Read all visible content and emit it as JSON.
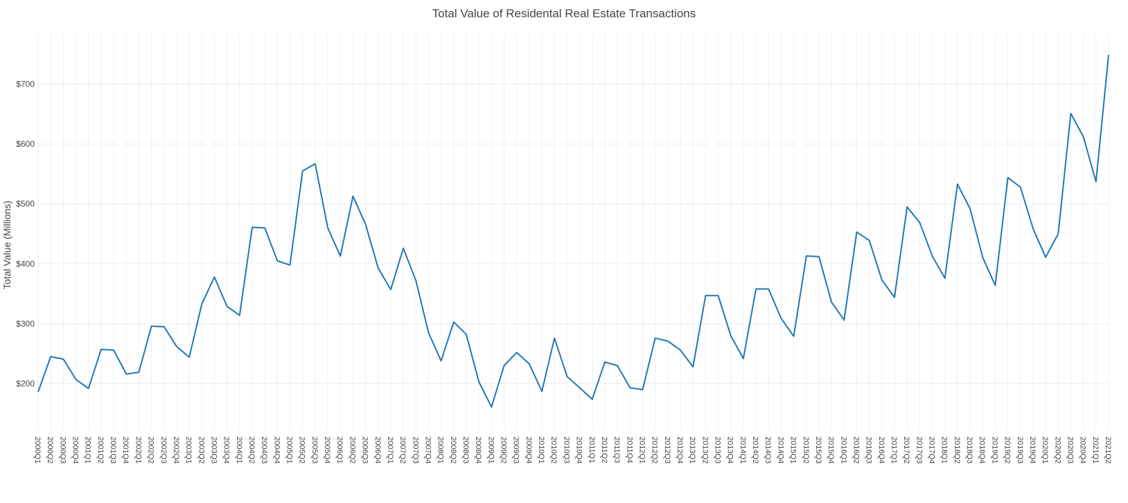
{
  "chart_data": {
    "type": "line",
    "title": "Total Value of Residental Real Estate Transactions",
    "xlabel": "",
    "ylabel": "Total Value (Millions)",
    "ylim": [
      122,
      785
    ],
    "yticks": [
      200,
      300,
      400,
      500,
      600,
      700
    ],
    "ytick_labels": [
      "$200",
      "$300",
      "$400",
      "$500",
      "$600",
      "$700"
    ],
    "grid": true,
    "line_color": "#1f77b4",
    "categories": [
      "2000Q1",
      "2000Q2",
      "2000Q3",
      "2000Q4",
      "2001Q1",
      "2001Q2",
      "2001Q3",
      "2001Q4",
      "2002Q1",
      "2002Q2",
      "2002Q3",
      "2002Q4",
      "2003Q1",
      "2003Q2",
      "2003Q3",
      "2003Q4",
      "2004Q1",
      "2004Q2",
      "2004Q3",
      "2004Q4",
      "2005Q1",
      "2005Q2",
      "2005Q3",
      "2005Q4",
      "2006Q1",
      "2006Q2",
      "2006Q3",
      "2006Q4",
      "2007Q1",
      "2007Q2",
      "2007Q3",
      "2007Q4",
      "2008Q1",
      "2008Q2",
      "2008Q3",
      "2008Q4",
      "2009Q1",
      "2009Q2",
      "2009Q3",
      "2009Q4",
      "2010Q1",
      "2010Q2",
      "2010Q3",
      "2010Q4",
      "2011Q1",
      "2011Q2",
      "2011Q3",
      "2011Q4",
      "2012Q1",
      "2012Q2",
      "2012Q3",
      "2012Q4",
      "2013Q1",
      "2013Q2",
      "2013Q3",
      "2013Q4",
      "2014Q1",
      "2014Q2",
      "2014Q3",
      "2014Q4",
      "2015Q1",
      "2015Q2",
      "2015Q3",
      "2015Q4",
      "2016Q1",
      "2016Q2",
      "2016Q3",
      "2016Q4",
      "2017Q1",
      "2017Q2",
      "2017Q3",
      "2017Q4",
      "2018Q1",
      "2018Q2",
      "2018Q3",
      "2018Q4",
      "2019Q1",
      "2019Q2",
      "2019Q3",
      "2019Q4",
      "2020Q1",
      "2020Q2",
      "2020Q3",
      "2020Q4",
      "2021Q1",
      "2021Q2"
    ],
    "values": [
      186,
      245,
      241,
      207,
      192,
      257,
      256,
      216,
      219,
      296,
      295,
      262,
      244,
      333,
      378,
      329,
      314,
      461,
      460,
      405,
      398,
      555,
      567,
      460,
      413,
      513,
      466,
      393,
      357,
      426,
      372,
      285,
      238,
      303,
      282,
      203,
      161,
      230,
      252,
      233,
      187,
      276,
      212,
      193,
      174,
      236,
      230,
      193,
      190,
      276,
      271,
      256,
      228,
      347,
      347,
      280,
      242,
      358,
      358,
      309,
      279,
      413,
      412,
      336,
      306,
      453,
      439,
      373,
      344,
      495,
      469,
      413,
      376,
      533,
      492,
      411,
      364,
      544,
      528,
      459,
      411,
      450,
      651,
      612,
      537,
      749
    ]
  }
}
